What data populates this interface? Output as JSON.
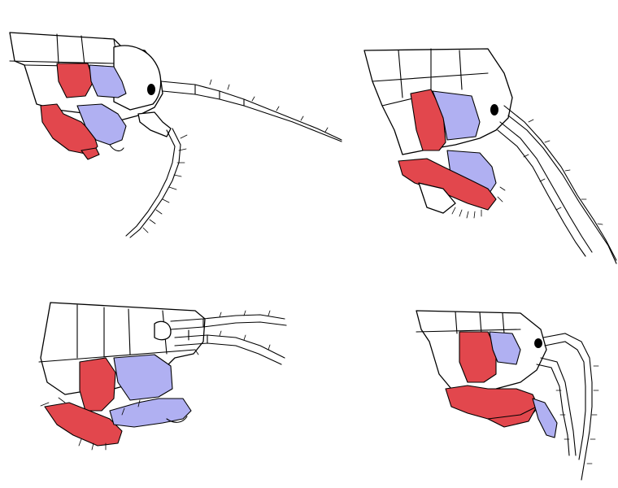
{
  "colors": {
    "background": "#ffffff",
    "outline": "#000000",
    "red_appendage": "#e2474d",
    "blue_appendage": "#b0b0f2"
  },
  "panels": [
    {
      "id": "top-left",
      "antenna_count": 2,
      "eye": true
    },
    {
      "id": "top-right",
      "antenna_count": 2,
      "eye": true
    },
    {
      "id": "bottom-left",
      "antenna_count": 2,
      "eye": false
    },
    {
      "id": "bottom-right",
      "antenna_count": 2,
      "eye": true
    }
  ]
}
